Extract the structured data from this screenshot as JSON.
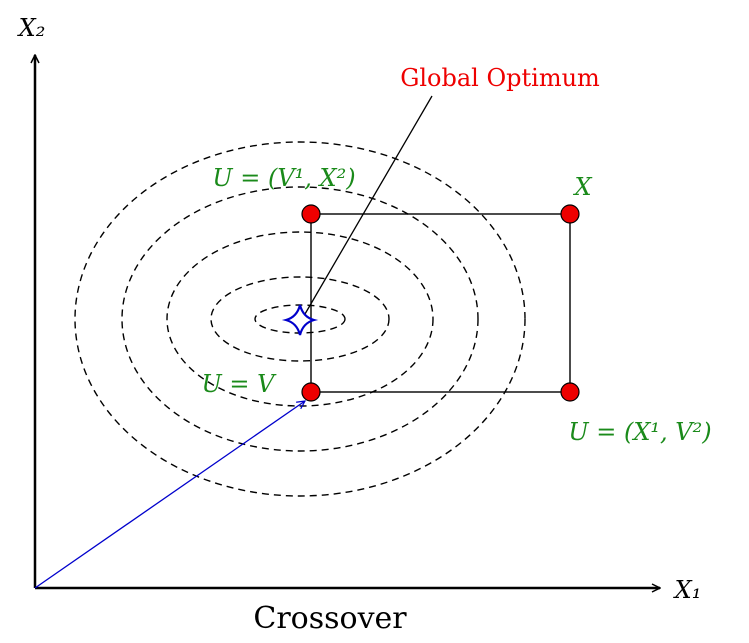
{
  "axes": {
    "y_label": "X₂",
    "x_label": "X₁"
  },
  "annotation": "Global Optimum",
  "points": {
    "top_left": "U = (V¹, X²)",
    "top_right": "X",
    "bottom_left": "U = V",
    "bottom_right": "U = (X¹, V²)"
  },
  "caption": "Crossover"
}
